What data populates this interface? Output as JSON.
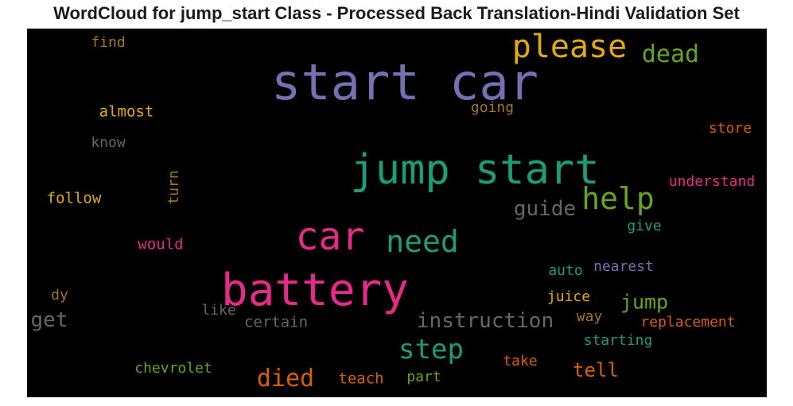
{
  "chart_data": {
    "type": "wordcloud",
    "title": "WordCloud for jump_start Class - Processed Back Translation-Hindi Validation Set",
    "background": "#000000",
    "words": [
      {
        "text": "start car",
        "size": 62,
        "color": "#7570b3"
      },
      {
        "text": "jump start",
        "size": 52,
        "color": "#1b9e77"
      },
      {
        "text": "battery",
        "size": 56,
        "color": "#e7298a"
      },
      {
        "text": "car",
        "size": 48,
        "color": "#e7298a"
      },
      {
        "text": "please",
        "size": 40,
        "color": "#e6ab02"
      },
      {
        "text": "need",
        "size": 38,
        "color": "#1b9e77"
      },
      {
        "text": "help",
        "size": 38,
        "color": "#66a61e"
      },
      {
        "text": "step",
        "size": 34,
        "color": "#1b9e77"
      },
      {
        "text": "dead",
        "size": 30,
        "color": "#66a61e"
      },
      {
        "text": "died",
        "size": 30,
        "color": "#d95f02"
      },
      {
        "text": "guide",
        "size": 26,
        "color": "#666666"
      },
      {
        "text": "instruction",
        "size": 26,
        "color": "#666666"
      },
      {
        "text": "get",
        "size": 26,
        "color": "#666666"
      },
      {
        "text": "jump",
        "size": 25,
        "color": "#66a61e"
      },
      {
        "text": "tell",
        "size": 24,
        "color": "#d95f02"
      },
      {
        "text": "almost",
        "size": 19,
        "color": "#e6ab02"
      },
      {
        "text": "follow",
        "size": 19,
        "color": "#e6ab02"
      },
      {
        "text": "teach",
        "size": 19,
        "color": "#d95f02"
      },
      {
        "text": "certain",
        "size": 19,
        "color": "#666666"
      },
      {
        "text": "would",
        "size": 19,
        "color": "#e7298a"
      },
      {
        "text": "understand",
        "size": 18,
        "color": "#e7298a"
      },
      {
        "text": "replacement",
        "size": 18,
        "color": "#d95f02"
      },
      {
        "text": "starting",
        "size": 18,
        "color": "#1b9e77"
      },
      {
        "text": "nearest",
        "size": 18,
        "color": "#7570b3"
      },
      {
        "text": "chevrolet",
        "size": 18,
        "color": "#66a61e"
      },
      {
        "text": "juice",
        "size": 18,
        "color": "#e6ab02"
      },
      {
        "text": "take",
        "size": 18,
        "color": "#d95f02"
      },
      {
        "text": "store",
        "size": 18,
        "color": "#d95f02"
      },
      {
        "text": "going",
        "size": 18,
        "color": "#a6761d"
      },
      {
        "text": "find",
        "size": 18,
        "color": "#a6761d"
      },
      {
        "text": "know",
        "size": 18,
        "color": "#666666"
      },
      {
        "text": "like",
        "size": 18,
        "color": "#666666"
      },
      {
        "text": "part",
        "size": 18,
        "color": "#66a61e"
      },
      {
        "text": "auto",
        "size": 18,
        "color": "#1b9e77"
      },
      {
        "text": "give",
        "size": 18,
        "color": "#1b9e77"
      },
      {
        "text": "way",
        "size": 18,
        "color": "#a6761d"
      },
      {
        "text": "dy",
        "size": 18,
        "color": "#a6761d"
      },
      {
        "text": "turn",
        "size": 18,
        "color": "#a6761d",
        "vertical": true
      }
    ]
  }
}
